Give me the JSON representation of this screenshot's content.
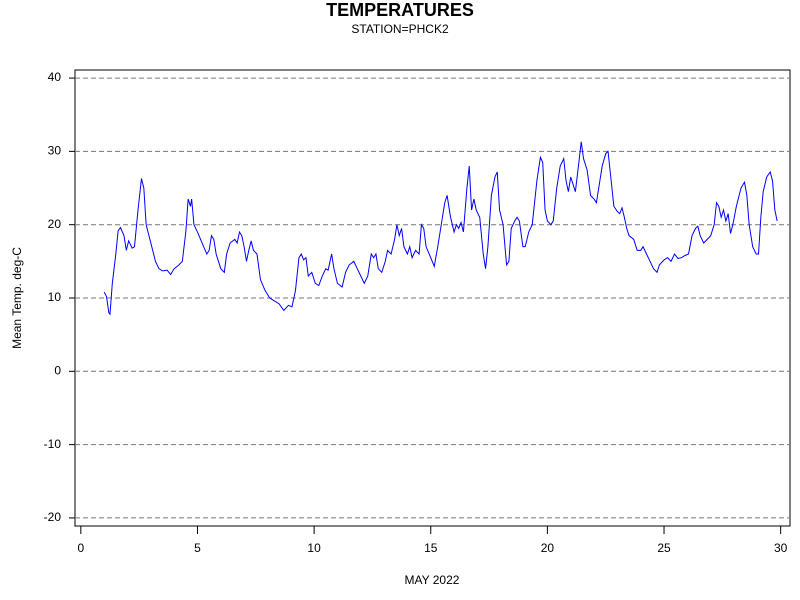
{
  "chart_data": {
    "type": "line",
    "title": "TEMPERATURES",
    "subtitle": "STATION=PHCK2",
    "xlabel": "MAY 2022",
    "ylabel": "Mean Temp. deg-C",
    "color": "#0000ff",
    "grid": true,
    "xlim": [
      -0.25,
      30.4
    ],
    "ylim": [
      -21.1,
      41.1
    ],
    "xticks": [
      0,
      5,
      10,
      15,
      20,
      25,
      30
    ],
    "yticks": [
      -20,
      -10,
      0,
      10,
      20,
      30,
      40
    ],
    "x": [
      1.0,
      1.1,
      1.2,
      1.25,
      1.35,
      1.5,
      1.6,
      1.7,
      1.85,
      1.95,
      2.05,
      2.2,
      2.3,
      2.45,
      2.6,
      2.7,
      2.8,
      3.0,
      3.2,
      3.35,
      3.5,
      3.7,
      3.85,
      4.0,
      4.2,
      4.35,
      4.5,
      4.6,
      4.7,
      4.75,
      4.85,
      5.0,
      5.2,
      5.4,
      5.5,
      5.6,
      5.7,
      5.8,
      6.0,
      6.15,
      6.25,
      6.4,
      6.6,
      6.7,
      6.8,
      6.9,
      7.0,
      7.1,
      7.2,
      7.3,
      7.4,
      7.55,
      7.7,
      7.9,
      8.1,
      8.3,
      8.5,
      8.7,
      8.9,
      9.05,
      9.2,
      9.35,
      9.45,
      9.55,
      9.65,
      9.75,
      9.9,
      10.05,
      10.2,
      10.35,
      10.5,
      10.6,
      10.75,
      10.85,
      11.0,
      11.2,
      11.35,
      11.5,
      11.7,
      11.85,
      12.0,
      12.15,
      12.3,
      12.45,
      12.55,
      12.65,
      12.75,
      12.9,
      13.05,
      13.15,
      13.3,
      13.45,
      13.55,
      13.65,
      13.75,
      13.85,
      14.0,
      14.1,
      14.2,
      14.35,
      14.5,
      14.6,
      14.7,
      14.8,
      15.0,
      15.15,
      15.3,
      15.45,
      15.6,
      15.7,
      15.85,
      16.0,
      16.1,
      16.2,
      16.3,
      16.4,
      16.55,
      16.65,
      16.75,
      16.85,
      16.95,
      17.1,
      17.25,
      17.35,
      17.45,
      17.6,
      17.75,
      17.85,
      17.95,
      18.1,
      18.25,
      18.35,
      18.45,
      18.6,
      18.7,
      18.8,
      18.95,
      19.05,
      19.2,
      19.35,
      19.55,
      19.7,
      19.8,
      19.9,
      20.0,
      20.15,
      20.25,
      20.4,
      20.55,
      20.7,
      20.8,
      20.9,
      21.0,
      21.1,
      21.2,
      21.35,
      21.45,
      21.55,
      21.7,
      21.85,
      22.0,
      22.1,
      22.2,
      22.35,
      22.5,
      22.6,
      22.7,
      22.85,
      23.0,
      23.1,
      23.2,
      23.3,
      23.4,
      23.5,
      23.7,
      23.85,
      24.0,
      24.1,
      24.25,
      24.4,
      24.55,
      24.7,
      24.8,
      25.0,
      25.15,
      25.3,
      25.45,
      25.6,
      25.75,
      25.9,
      26.05,
      26.2,
      26.35,
      26.45,
      26.55,
      26.7,
      26.85,
      27.0,
      27.15,
      27.25,
      27.35,
      27.45,
      27.55,
      27.65,
      27.75,
      27.85,
      27.95,
      28.1,
      28.3,
      28.45,
      28.55,
      28.65,
      28.8,
      28.95,
      29.05,
      29.15,
      29.25,
      29.4,
      29.55,
      29.65,
      29.75,
      29.85
    ],
    "values": [
      10.8,
      10.2,
      8.0,
      7.8,
      12,
      16,
      19.2,
      19.6,
      18.5,
      16.5,
      17.8,
      16.8,
      17,
      22,
      26.3,
      25,
      20,
      17.5,
      15,
      14,
      13.7,
      13.8,
      13.2,
      14,
      14.5,
      15,
      19,
      23.5,
      22.5,
      23.5,
      20,
      19,
      17.5,
      16,
      16.5,
      18.5,
      18,
      16,
      14,
      13.5,
      16,
      17.5,
      18,
      17.5,
      19,
      18.5,
      17,
      15,
      16.5,
      17.8,
      16.5,
      16,
      12.5,
      11,
      10,
      9.6,
      9.2,
      8.3,
      9,
      8.8,
      11,
      15.5,
      16,
      15.2,
      15.5,
      13,
      13.5,
      12,
      11.7,
      13,
      14,
      13.8,
      16,
      14,
      12,
      11.5,
      13.5,
      14.5,
      15,
      14,
      13,
      12,
      13,
      16,
      15.5,
      16,
      14,
      13.5,
      15,
      16.5,
      16,
      18,
      20,
      18.5,
      19.5,
      17,
      16,
      17,
      15.5,
      16.5,
      16,
      20,
      19.5,
      17,
      15.5,
      14.3,
      17,
      20,
      23,
      24,
      21,
      19,
      20,
      19.5,
      20.3,
      19,
      25,
      28,
      22,
      23.5,
      22,
      21,
      16,
      14,
      17,
      24,
      26.5,
      27.2,
      22,
      20,
      14.5,
      15,
      19.5,
      20.5,
      21,
      20.5,
      17,
      17,
      19,
      20,
      26,
      29.2,
      28.5,
      22,
      20.5,
      20,
      20.5,
      25,
      28,
      29,
      26,
      24.5,
      26.5,
      25.5,
      24.5,
      28.5,
      31.3,
      29,
      27.5,
      24,
      23.5,
      23,
      25,
      28,
      29.7,
      30,
      27,
      22.5,
      21.8,
      21.5,
      22.3,
      21,
      19.5,
      18.5,
      18,
      16.5,
      16.5,
      17,
      16,
      15,
      14,
      13.5,
      14.5,
      15.2,
      15.5,
      15,
      16,
      15.4,
      15.5,
      15.8,
      16,
      18.5,
      19.5,
      19.8,
      18.5,
      17.5,
      18,
      18.5,
      20,
      23,
      22.5,
      21,
      22,
      20.5,
      21.5,
      18.8,
      20,
      22.5,
      25,
      25.8,
      24,
      20,
      17,
      16,
      16,
      21,
      24.5,
      26.5,
      27.2,
      26,
      22,
      20.5
    ]
  }
}
